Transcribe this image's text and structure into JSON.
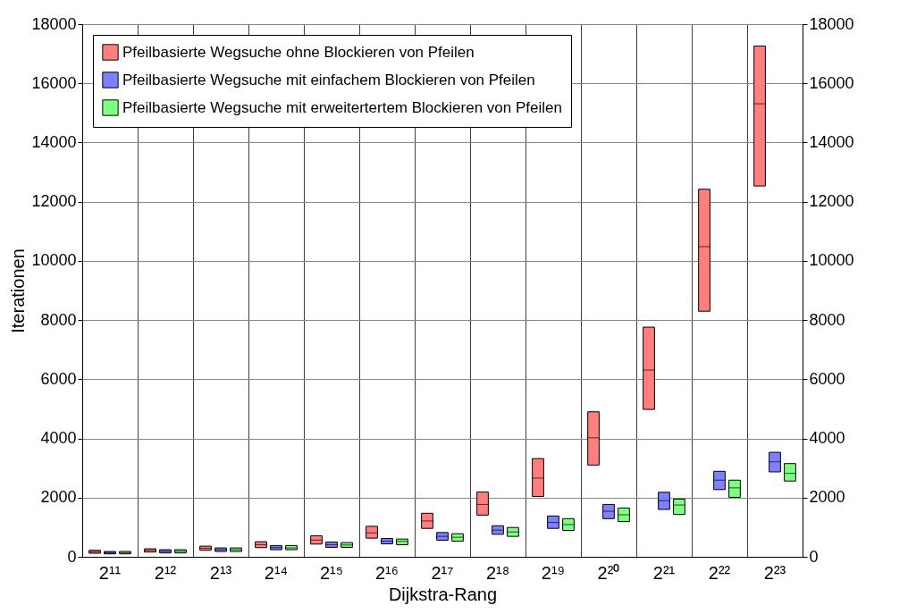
{
  "chart_data": {
    "type": "box",
    "xlabel": "Dijkstra-Rang",
    "ylabel": "Iterationen",
    "categories": [
      "2¹¹",
      "2¹²",
      "2¹³",
      "2¹⁴",
      "2¹⁵",
      "2¹⁶",
      "2¹⁷",
      "2¹⁸",
      "2¹⁹",
      "2²⁰",
      "2²¹",
      "2²²",
      "2²³"
    ],
    "ylim": [
      0,
      18000
    ],
    "yticks": [
      0,
      2000,
      4000,
      6000,
      8000,
      10000,
      12000,
      14000,
      16000,
      18000
    ],
    "y2lim": [
      0,
      18000
    ],
    "y2ticks": [
      0,
      2000,
      4000,
      6000,
      8000,
      10000,
      12000,
      14000,
      16000,
      18000
    ],
    "grid": true,
    "legend": "top left",
    "series": [
      {
        "name": "Pfeilbasierte Wegsuche ohne Blockieren von Pfeilen",
        "color": "#ff7f7f",
        "boxes": [
          {
            "low": 120,
            "q1": 120,
            "median": 170,
            "q3": 220,
            "high": 220
          },
          {
            "low": 160,
            "q1": 160,
            "median": 216,
            "q3": 270,
            "high": 270
          },
          {
            "low": 220,
            "q1": 220,
            "median": 290,
            "q3": 360,
            "high": 360
          },
          {
            "low": 310,
            "q1": 310,
            "median": 410,
            "q3": 510,
            "high": 510
          },
          {
            "low": 430,
            "q1": 430,
            "median": 570,
            "q3": 710,
            "high": 710
          },
          {
            "low": 630,
            "q1": 630,
            "median": 810,
            "q3": 1030,
            "high": 1030
          },
          {
            "low": 960,
            "q1": 960,
            "median": 1210,
            "q3": 1470,
            "high": 1470
          },
          {
            "low": 1410,
            "q1": 1410,
            "median": 1770,
            "q3": 2190,
            "high": 2190
          },
          {
            "low": 2040,
            "q1": 2040,
            "median": 2660,
            "q3": 3320,
            "high": 3320
          },
          {
            "low": 3100,
            "q1": 3100,
            "median": 4020,
            "q3": 4900,
            "high": 4900
          },
          {
            "low": 4980,
            "q1": 4980,
            "median": 6310,
            "q3": 7760,
            "high": 7760
          },
          {
            "low": 8300,
            "q1": 8300,
            "median": 10480,
            "q3": 12420,
            "high": 12420
          },
          {
            "low": 12530,
            "q1": 12530,
            "median": 15310,
            "q3": 17260,
            "high": 17260
          }
        ]
      },
      {
        "name": "Pfeilbasierte Wegsuche mit einfachem Blockieren von Pfeilen",
        "color": "#7f7fff",
        "boxes": [
          {
            "low": 100,
            "q1": 100,
            "median": 140,
            "q3": 180,
            "high": 180
          },
          {
            "low": 130,
            "q1": 130,
            "median": 186,
            "q3": 240,
            "high": 240
          },
          {
            "low": 180,
            "q1": 180,
            "median": 240,
            "q3": 300,
            "high": 300
          },
          {
            "low": 240,
            "q1": 240,
            "median": 310,
            "q3": 380,
            "high": 380
          },
          {
            "low": 320,
            "q1": 320,
            "median": 410,
            "q3": 500,
            "high": 500
          },
          {
            "low": 440,
            "q1": 440,
            "median": 530,
            "q3": 620,
            "high": 620
          },
          {
            "low": 560,
            "q1": 560,
            "median": 690,
            "q3": 820,
            "high": 820
          },
          {
            "low": 760,
            "q1": 760,
            "median": 900,
            "q3": 1050,
            "high": 1050
          },
          {
            "low": 960,
            "q1": 960,
            "median": 1160,
            "q3": 1380,
            "high": 1380
          },
          {
            "low": 1290,
            "q1": 1290,
            "median": 1540,
            "q3": 1770,
            "high": 1770
          },
          {
            "low": 1600,
            "q1": 1600,
            "median": 1900,
            "q3": 2180,
            "high": 2180
          },
          {
            "low": 2270,
            "q1": 2270,
            "median": 2590,
            "q3": 2890,
            "high": 2890
          },
          {
            "low": 2870,
            "q1": 2870,
            "median": 3210,
            "q3": 3530,
            "high": 3530
          }
        ]
      },
      {
        "name": "Pfeilbasierte Wegsuche mit erweitertertem Blockieren von Pfeilen",
        "color": "#7fff7f",
        "boxes": [
          {
            "low": 100,
            "q1": 100,
            "median": 140,
            "q3": 180,
            "high": 180
          },
          {
            "low": 130,
            "q1": 130,
            "median": 186,
            "q3": 240,
            "high": 240
          },
          {
            "low": 180,
            "q1": 180,
            "median": 240,
            "q3": 300,
            "high": 300
          },
          {
            "low": 240,
            "q1": 240,
            "median": 300,
            "q3": 380,
            "high": 380
          },
          {
            "low": 320,
            "q1": 320,
            "median": 400,
            "q3": 480,
            "high": 480
          },
          {
            "low": 410,
            "q1": 410,
            "median": 520,
            "q3": 600,
            "high": 600
          },
          {
            "low": 530,
            "q1": 530,
            "median": 660,
            "q3": 780,
            "high": 780
          },
          {
            "low": 690,
            "q1": 690,
            "median": 840,
            "q3": 990,
            "high": 990
          },
          {
            "low": 890,
            "q1": 890,
            "median": 1090,
            "q3": 1290,
            "high": 1290
          },
          {
            "low": 1190,
            "q1": 1190,
            "median": 1420,
            "q3": 1650,
            "high": 1650
          },
          {
            "low": 1430,
            "q1": 1430,
            "median": 1750,
            "q3": 1950,
            "high": 1950
          },
          {
            "low": 2010,
            "q1": 2010,
            "median": 2330,
            "q3": 2590,
            "high": 2590
          },
          {
            "low": 2560,
            "q1": 2560,
            "median": 2820,
            "q3": 3150,
            "high": 3150
          }
        ]
      }
    ]
  }
}
